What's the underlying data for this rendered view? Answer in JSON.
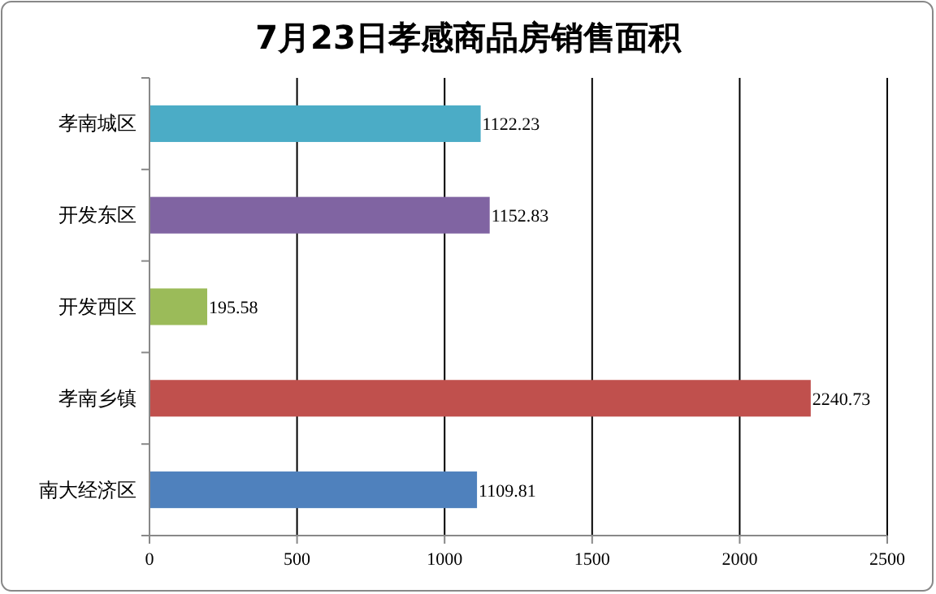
{
  "chart_data": {
    "type": "bar",
    "orientation": "horizontal",
    "title": "7月23日孝感商品房销售面积",
    "categories": [
      "孝南城区",
      "开发东区",
      "开发西区",
      "孝南乡镇",
      "南大经济区"
    ],
    "values": [
      1122.23,
      1152.83,
      195.58,
      2240.73,
      1109.81
    ],
    "colors": [
      "#4bacc6",
      "#8064a2",
      "#9bbb59",
      "#c0504d",
      "#4f81bd"
    ],
    "xlim": [
      0,
      2500
    ],
    "xticks": [
      0,
      500,
      1000,
      1500,
      2000,
      2500
    ],
    "grid": "x",
    "data_labels": true
  }
}
